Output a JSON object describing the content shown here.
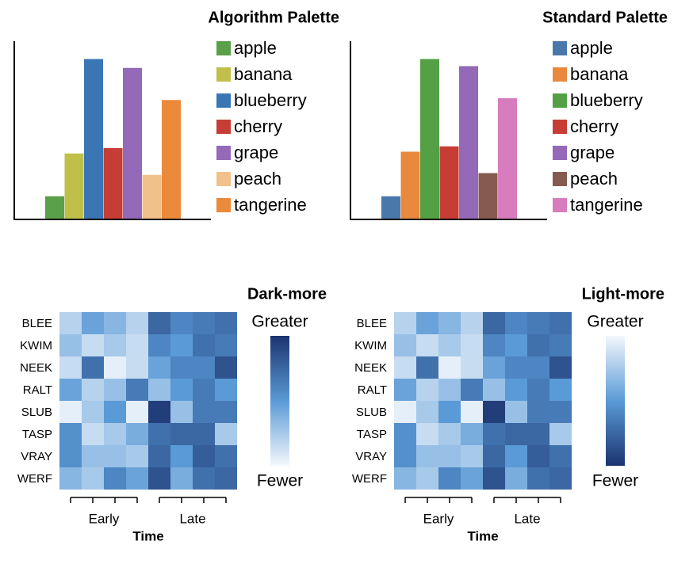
{
  "chart_data": [
    {
      "type": "bar",
      "title": "Algorithm Palette",
      "categories": [
        "apple",
        "banana",
        "blueberry",
        "cherry",
        "grape",
        "peach",
        "tangerine"
      ],
      "values": [
        13,
        37,
        90,
        40,
        85,
        25,
        67
      ],
      "colors": [
        "#5aa04a",
        "#bfbf4a",
        "#3a76b4",
        "#c63d35",
        "#9369b8",
        "#f2c08a",
        "#ec8a3b"
      ],
      "ylim": [
        0,
        100
      ]
    },
    {
      "type": "bar",
      "title": "Standard Palette",
      "categories": [
        "apple",
        "banana",
        "blueberry",
        "cherry",
        "grape",
        "peach",
        "tangerine"
      ],
      "values": [
        13,
        38,
        90,
        41,
        86,
        26,
        68
      ],
      "colors": [
        "#4a78ab",
        "#e8893e",
        "#54a044",
        "#c73d35",
        "#9369b8",
        "#875a50",
        "#d77dbe"
      ],
      "ylim": [
        0,
        100
      ]
    },
    {
      "type": "heatmap",
      "title": "Dark-more",
      "rows": [
        "BLEE",
        "KWIM",
        "NEEK",
        "RALT",
        "SLUB",
        "TASP",
        "VRAY",
        "WERF"
      ],
      "columns": [
        null,
        null,
        null,
        null,
        null,
        null,
        null,
        null
      ],
      "x_groups": [
        "Early",
        "Late"
      ],
      "xlabel": "Time",
      "values": [
        [
          20,
          45,
          35,
          20,
          75,
          60,
          65,
          70
        ],
        [
          30,
          15,
          25,
          15,
          60,
          50,
          70,
          65
        ],
        [
          15,
          70,
          5,
          15,
          45,
          60,
          60,
          85
        ],
        [
          45,
          20,
          30,
          65,
          30,
          50,
          65,
          50
        ],
        [
          5,
          25,
          50,
          5,
          95,
          30,
          65,
          65
        ],
        [
          55,
          15,
          25,
          40,
          70,
          75,
          75,
          25
        ],
        [
          55,
          30,
          30,
          25,
          75,
          50,
          80,
          70
        ],
        [
          35,
          25,
          60,
          45,
          85,
          40,
          70,
          75
        ]
      ],
      "zlim": [
        0,
        100
      ],
      "colormap": [
        "#f4f8fd",
        "#5a9ad6",
        "#1b3470"
      ],
      "reverse": false,
      "scale_high": "Greater",
      "scale_low": "Fewer"
    },
    {
      "type": "heatmap",
      "title": "Light-more",
      "rows": [
        "BLEE",
        "KWIM",
        "NEEK",
        "RALT",
        "SLUB",
        "TASP",
        "VRAY",
        "WERF"
      ],
      "columns": [
        null,
        null,
        null,
        null,
        null,
        null,
        null,
        null
      ],
      "x_groups": [
        "Early",
        "Late"
      ],
      "xlabel": "Time",
      "values": [
        [
          80,
          55,
          65,
          80,
          25,
          40,
          35,
          30
        ],
        [
          70,
          85,
          75,
          85,
          40,
          50,
          30,
          35
        ],
        [
          85,
          30,
          95,
          85,
          55,
          40,
          40,
          15
        ],
        [
          55,
          80,
          70,
          35,
          70,
          50,
          35,
          50
        ],
        [
          95,
          75,
          50,
          95,
          5,
          70,
          35,
          35
        ],
        [
          45,
          85,
          75,
          60,
          30,
          25,
          25,
          75
        ],
        [
          45,
          70,
          70,
          75,
          25,
          50,
          20,
          30
        ],
        [
          65,
          75,
          40,
          55,
          15,
          60,
          30,
          25
        ]
      ],
      "zlim": [
        0,
        100
      ],
      "colormap": [
        "#f4f8fd",
        "#5a9ad6",
        "#1b3470"
      ],
      "reverse": true,
      "scale_high": "Greater",
      "scale_low": "Fewer"
    }
  ]
}
